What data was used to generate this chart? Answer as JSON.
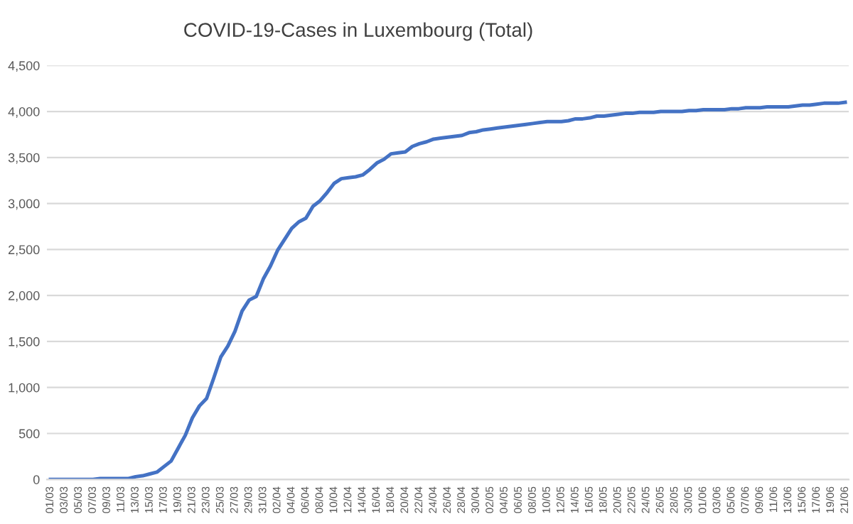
{
  "chart_data": {
    "type": "line",
    "title": "COVID-19-Cases in Luxembourg (Total)",
    "categories": [
      "01/03",
      null,
      "03/03",
      null,
      "05/03",
      null,
      "07/03",
      null,
      "09/03",
      null,
      "11/03",
      null,
      "13/03",
      null,
      "15/03",
      null,
      "17/03",
      null,
      "19/03",
      null,
      "21/03",
      null,
      "23/03",
      null,
      "25/03",
      null,
      "27/03",
      null,
      "29/03",
      null,
      "31/03",
      null,
      "02/04",
      null,
      "04/04",
      null,
      "06/04",
      null,
      "08/04",
      null,
      "10/04",
      null,
      "12/04",
      null,
      "14/04",
      null,
      "16/04",
      null,
      "18/04",
      null,
      "20/04",
      null,
      "22/04",
      null,
      "24/04",
      null,
      "26/04",
      null,
      "28/04",
      null,
      "30/04",
      null,
      "02/05",
      null,
      "04/05",
      null,
      "06/05",
      null,
      "08/05",
      null,
      "10/05",
      null,
      "12/05",
      null,
      "14/05",
      null,
      "16/05",
      null,
      "18/05",
      null,
      "20/05",
      null,
      "22/05",
      null,
      "24/05",
      null,
      "26/05",
      null,
      "28/05",
      null,
      "30/05",
      null,
      "01/06",
      null,
      "03/06",
      null,
      "05/06",
      null,
      "07/06",
      null,
      "09/06",
      null,
      "11/06",
      null,
      "13/06",
      null,
      "15/06",
      null,
      "17/06",
      null,
      "19/06",
      null,
      "21/06"
    ],
    "values": [
      0,
      0,
      0,
      0,
      0,
      0,
      0,
      10,
      10,
      10,
      10,
      10,
      30,
      40,
      60,
      80,
      140,
      200,
      340,
      480,
      670,
      800,
      880,
      1100,
      1330,
      1450,
      1610,
      1830,
      1950,
      1990,
      2180,
      2320,
      2490,
      2610,
      2730,
      2800,
      2840,
      2970,
      3030,
      3120,
      3220,
      3270,
      3280,
      3290,
      3310,
      3370,
      3440,
      3480,
      3540,
      3550,
      3560,
      3620,
      3650,
      3670,
      3700,
      3710,
      3720,
      3730,
      3740,
      3770,
      3780,
      3800,
      3810,
      3820,
      3830,
      3840,
      3850,
      3860,
      3870,
      3880,
      3890,
      3890,
      3890,
      3900,
      3920,
      3920,
      3930,
      3950,
      3950,
      3960,
      3970,
      3980,
      3980,
      3990,
      3990,
      3990,
      4000,
      4000,
      4000,
      4000,
      4010,
      4010,
      4020,
      4020,
      4020,
      4020,
      4030,
      4030,
      4040,
      4040,
      4040,
      4050,
      4050,
      4050,
      4050,
      4060,
      4070,
      4070,
      4080,
      4090,
      4090,
      4090,
      4100
    ],
    "color": "#4472c4",
    "ylim": [
      0,
      4500
    ],
    "yticks": [
      {
        "value": 0,
        "label": "0"
      },
      {
        "value": 500,
        "label": "500"
      },
      {
        "value": 1000,
        "label": "1,000"
      },
      {
        "value": 1500,
        "label": "1,500"
      },
      {
        "value": 2000,
        "label": "2,000"
      },
      {
        "value": 2500,
        "label": "2,500"
      },
      {
        "value": 3000,
        "label": "3,000"
      },
      {
        "value": 3500,
        "label": "3,500"
      },
      {
        "value": 4000,
        "label": "4,000"
      },
      {
        "value": 4500,
        "label": "4,500"
      }
    ],
    "grid": "y",
    "legend": false,
    "marker": "none",
    "line_style": "solid"
  }
}
